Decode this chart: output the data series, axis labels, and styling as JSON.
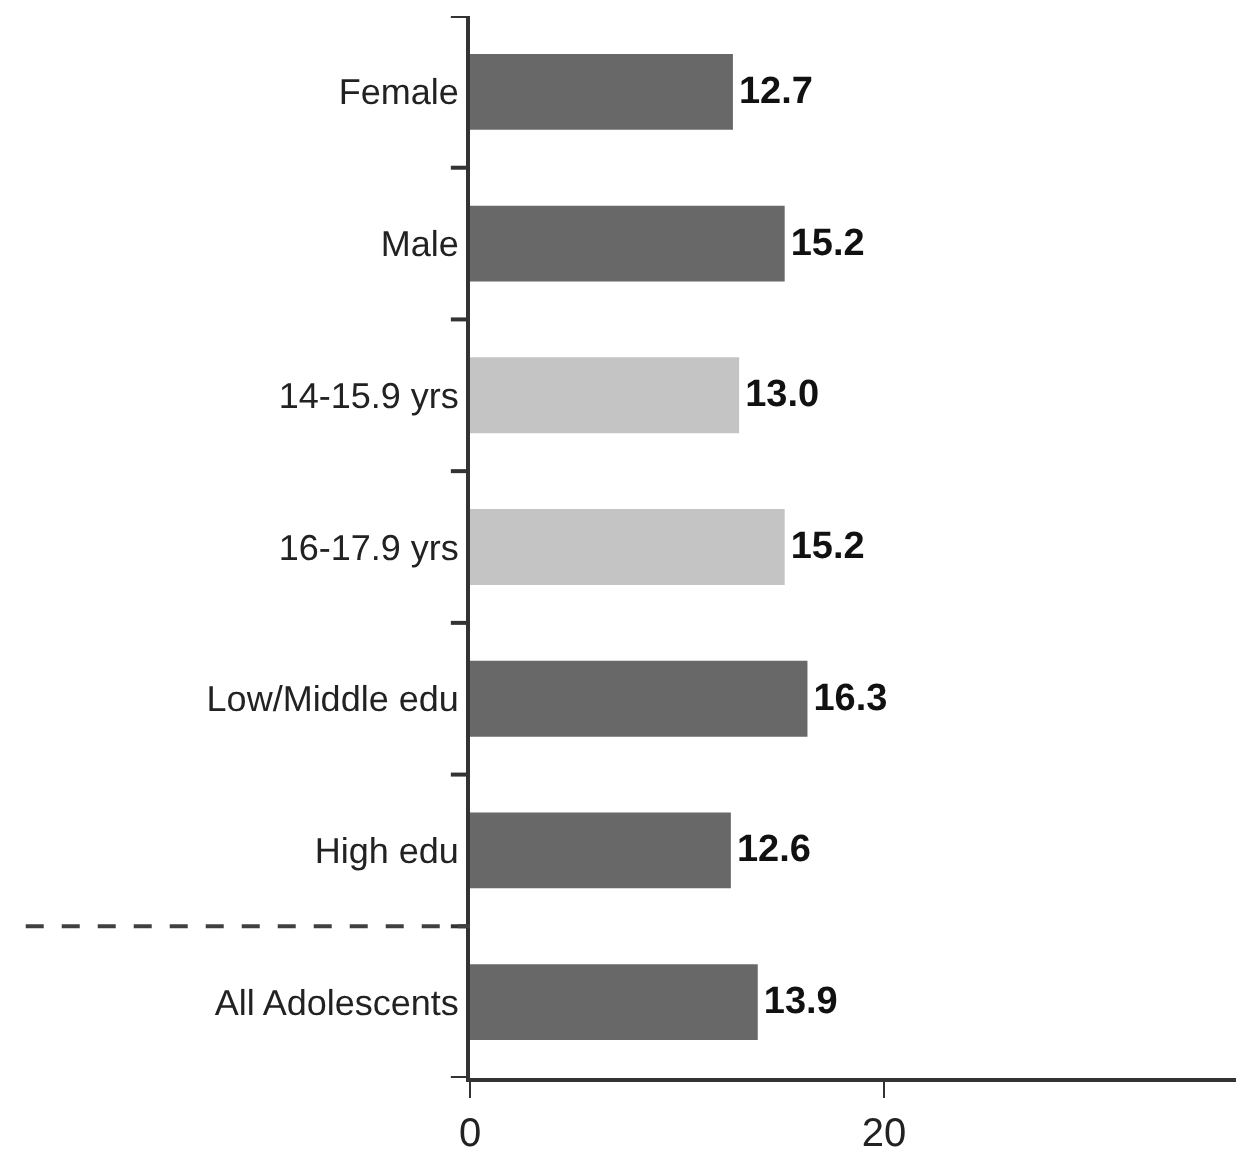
{
  "chart_data": {
    "type": "bar",
    "orientation": "horizontal",
    "categories": [
      "Female",
      "Male",
      "14-15.9 yrs",
      "16-17.9 yrs",
      "Low/Middle edu",
      "High edu",
      "All Adolescents"
    ],
    "values": [
      12.7,
      15.2,
      13.0,
      15.2,
      16.3,
      12.6,
      13.9
    ],
    "value_labels": [
      "12.7",
      "15.2",
      "13.0",
      "15.2",
      "16.3",
      "12.6",
      "13.9"
    ],
    "colors": [
      "#686868",
      "#686868",
      "#c4c4c4",
      "#c4c4c4",
      "#686868",
      "#686868",
      "#686868"
    ],
    "xlim": [
      0,
      37
    ],
    "xticks": [
      0,
      20
    ]
  }
}
